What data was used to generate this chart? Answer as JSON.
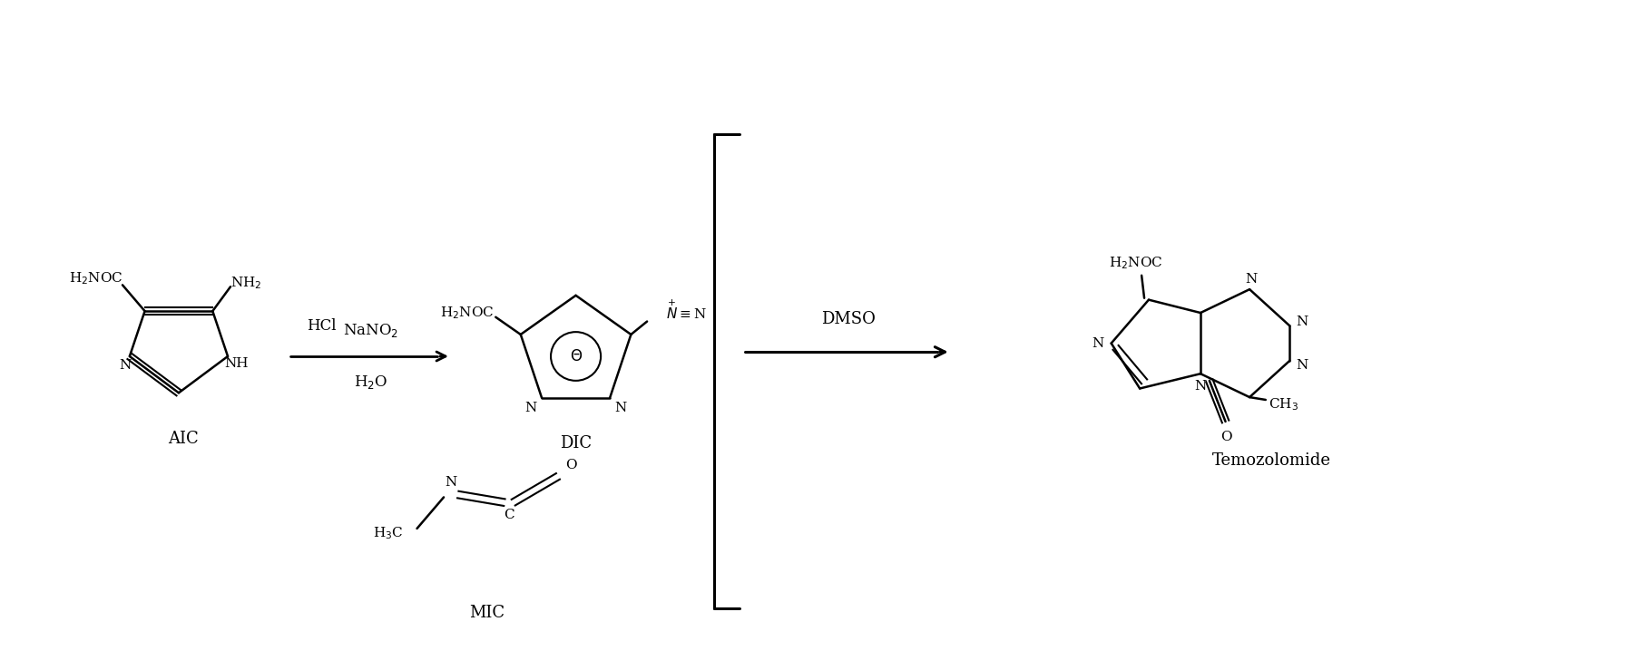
{
  "bg_color": "#ffffff",
  "line_color": "#000000",
  "fig_width": 18.15,
  "fig_height": 7.39,
  "labels": {
    "AIC": "AIC",
    "DIC": "DIC",
    "MIC": "MIC",
    "Temozolomide": "Temozolomide",
    "HCl": "HCl",
    "NaNO2": "NaNO$_2$",
    "H2O": "H$_2$O",
    "DMSO": "DMSO"
  },
  "font_size_label": 14,
  "font_size_formula": 12,
  "font_size_compound": 13
}
